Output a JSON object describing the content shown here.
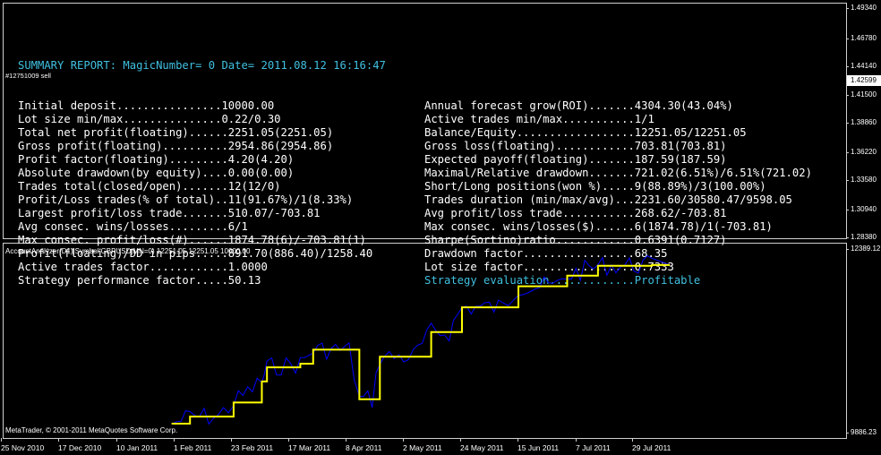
{
  "report": {
    "header": "SUMMARY REPORT: MagicNumber= 0 Date= 2011.08.12 16:16:47",
    "left": [
      "Initial deposit................10000.00",
      "Lot size min/max...............0.22/0.30",
      "Total net profit(floating)......2251.05(2251.05)",
      "Gross profit(floating)..........2954.86(2954.86)",
      "Profit factor(floating).........4.20(4.20)",
      "Absolute drawdown(by equity)....0.00(0.00)",
      "Trades total(closed/open).......12(12/0)",
      "Profit/Loss trades(% of total)..11(91.67%)/1(8.33%)",
      "Largest profit/loss trade.......510.07/-703.81",
      "Avg consec. wins/losses.........6/1",
      "Max consec. profit/loss(#)......1874.78(6)/-703.81(1)",
      "Profit(floating)/DD in pips.....891.70(886.40)/1258.40",
      "Active trades factor............1.0000",
      "Strategy performance factor.....50.13"
    ],
    "right": [
      "Annual forecast grow(ROI).......4304.30(43.04%)",
      "Active trades min/max...........1/1",
      "Balance/Equity..................12251.05/12251.05",
      "Gross loss(floating)............703.81(703.81)",
      "Expected payoff(floating).......187.59(187.59)",
      "Maximal/Relative drawdown.......721.02(6.51%)/6.51%(721.02)",
      "Short/Long positions(won %).....9(88.89%)/3(100.00%)",
      "Trades duration (min/max/avg)...2231.60/30580.47/9598.05",
      "Avg profit/loss trade...........268.62/-703.81",
      "Max consec. wins/losses($)......6(1874.78)/1(-703.81)",
      "Sharpe(Sortino)ratio............0.6391(0.7127)",
      "Drawdown factor.................68.35",
      "Lot size factor.................0.7333",
      "Strategy evaluation.............Profitable"
    ]
  },
  "trade_label": "#12751009 sell",
  "price_axis": {
    "ticks": [
      "1.49340",
      "1.46780",
      "1.44140",
      "1.41500",
      "1.38860",
      "1.36220",
      "1.33580",
      "1.30940",
      "1.28380"
    ],
    "current": "1.42599"
  },
  "indicator": {
    "title": "AccountAnalyzer(D1)|Symbol:GBPUSD|MN=0) 12251.05 12251.05 10000.00",
    "axis_top": "12389.12",
    "axis_bottom": "9886.23"
  },
  "copyright": "MetaTrader, © 2001-2011 MetaQuotes Software Corp.",
  "time_axis": [
    "25 Nov 2010",
    "17 Dec 2010",
    "10 Jan 2011",
    "1 Feb 2011",
    "23 Feb 2011",
    "17 Mar 2011",
    "8 Apr 2011",
    "2 May 2011",
    "24 May 2011",
    "15 Jun 2011",
    "7 Jul 2011",
    "29 Jul 2011"
  ],
  "colors": {
    "balance_line": "#ffff00",
    "equity_line": "#0000ff",
    "header_text": "#40c0e0",
    "frame": "#cfcfcf"
  },
  "chart_data": {
    "type": "line",
    "title": "AccountAnalyzer(D1)|Symbol:GBPUSD|MN=0) 12251.05 12251.05 10000.00",
    "xlabel": "",
    "ylabel": "",
    "ylim": [
      9886.23,
      12389.12
    ],
    "x": [
      "2011-01-30",
      "2011-02-06",
      "2011-02-17",
      "2011-02-23",
      "2011-03-06",
      "2011-03-08",
      "2011-03-21",
      "2011-03-26",
      "2011-04-09",
      "2011-04-13",
      "2011-04-18",
      "2011-04-21",
      "2011-05-04",
      "2011-05-11",
      "2011-05-18",
      "2011-05-23",
      "2011-06-08",
      "2011-06-14",
      "2011-06-29",
      "2011-07-03",
      "2011-07-15",
      "2011-08-05"
    ],
    "series": [
      {
        "name": "",
        "values": [
          10000,
          10100,
          10100,
          10300,
          10600,
          10800,
          10850,
          11050,
          11050,
          10347,
          10347,
          10950,
          10950,
          11300,
          11300,
          11650,
          11650,
          11950,
          11950,
          12100,
          12240,
          12251
        ]
      }
    ]
  }
}
